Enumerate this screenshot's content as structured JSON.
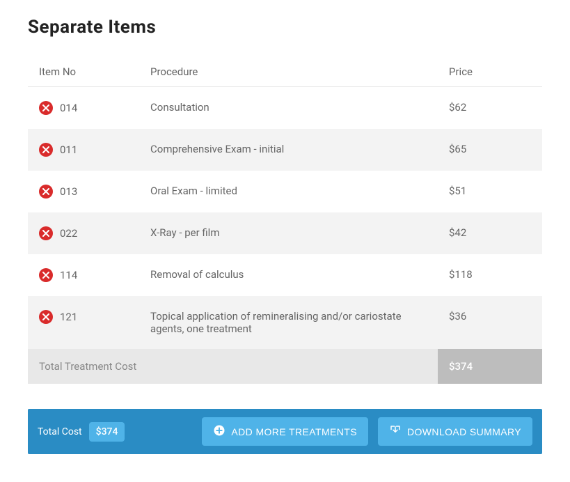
{
  "title": "Separate Items",
  "columns": {
    "item": "Item No",
    "procedure": "Procedure",
    "price": "Price"
  },
  "rows": [
    {
      "item": "014",
      "procedure": "Consultation",
      "price": "$62"
    },
    {
      "item": "011",
      "procedure": "Comprehensive Exam - initial",
      "price": "$65"
    },
    {
      "item": "013",
      "procedure": "Oral Exam - limited",
      "price": "$51"
    },
    {
      "item": "022",
      "procedure": "X-Ray - per film",
      "price": "$42"
    },
    {
      "item": "114",
      "procedure": "Removal of calculus",
      "price": "$118"
    },
    {
      "item": "121",
      "procedure": "Topical application of remineralising and/or cariostate agents, one treatment",
      "price": "$36"
    }
  ],
  "totalRow": {
    "label": "Total Treatment Cost",
    "value": "$374"
  },
  "footer": {
    "totalLabel": "Total Cost",
    "totalValue": "$374",
    "addMore": "ADD MORE TREATMENTS",
    "download": "DOWNLOAD SUMMARY"
  },
  "colors": {
    "primary": "#2a8cc4",
    "accent": "#4fb3e8",
    "danger": "#d92b2b",
    "altRow": "#f3f3f3",
    "totalBg": "#e8e8e8",
    "totalValueBg": "#bdbdbd"
  }
}
